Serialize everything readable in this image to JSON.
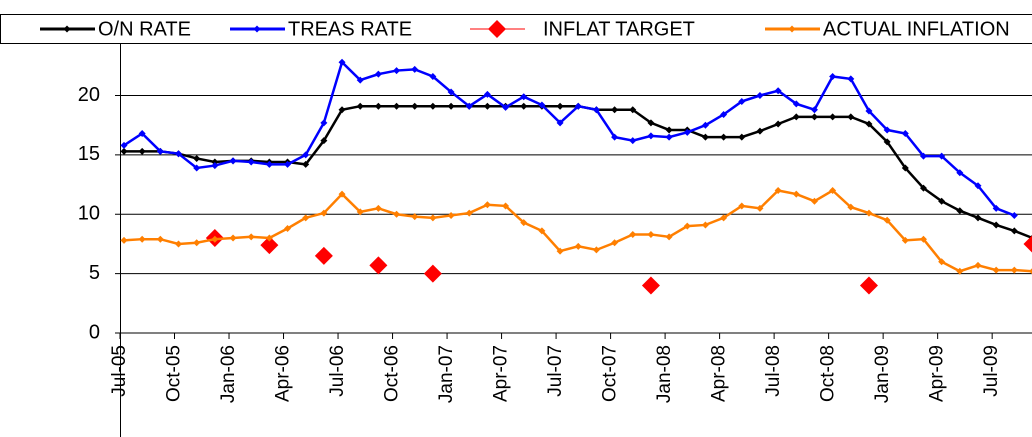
{
  "chart_data": {
    "type": "line",
    "categories": [
      "Jul-05",
      null,
      null,
      "Oct-05",
      null,
      null,
      "Jan-06",
      null,
      null,
      "Apr-06",
      null,
      null,
      "Jul-06",
      null,
      null,
      "Oct-06",
      null,
      null,
      "Jan-07",
      null,
      null,
      "Apr-07",
      null,
      null,
      "Jul-07",
      null,
      null,
      "Oct-07",
      null,
      null,
      "Jan-08",
      null,
      null,
      "Apr-08",
      null,
      null,
      "Jul-08",
      null,
      null,
      "Oct-08",
      null,
      null,
      "Jan-09",
      null,
      null,
      "Apr-09",
      null,
      null,
      "Jul-09",
      null,
      null
    ],
    "series": [
      {
        "name": "O/N RATE",
        "color": "#000000",
        "marker": "dot",
        "line": true,
        "values": [
          15.3,
          15.3,
          15.3,
          15.1,
          14.7,
          14.4,
          14.5,
          14.5,
          14.4,
          14.4,
          14.2,
          16.2,
          18.8,
          19.1,
          19.1,
          19.1,
          19.1,
          19.1,
          19.1,
          19.1,
          19.1,
          19.1,
          19.1,
          19.1,
          19.1,
          19.1,
          18.8,
          18.8,
          18.8,
          17.7,
          17.1,
          17.1,
          16.5,
          16.5,
          16.5,
          17.0,
          17.6,
          18.2,
          18.2,
          18.2,
          18.2,
          17.6,
          16.1,
          13.9,
          12.2,
          11.1,
          10.3,
          9.7,
          9.1,
          8.6,
          8.0
        ]
      },
      {
        "name": "TREAS RATE",
        "color": "#0000ff",
        "marker": "dot",
        "line": true,
        "values": [
          15.8,
          16.8,
          15.3,
          15.1,
          13.9,
          14.1,
          14.5,
          14.4,
          14.2,
          14.2,
          15.0,
          17.7,
          22.8,
          21.3,
          21.8,
          22.1,
          22.2,
          21.6,
          20.3,
          19.1,
          20.1,
          19.0,
          19.9,
          19.2,
          17.7,
          19.1,
          18.8,
          16.5,
          16.2,
          16.6,
          16.5,
          16.9,
          17.5,
          18.4,
          19.5,
          20.0,
          20.4,
          19.3,
          18.8,
          21.6,
          21.4,
          18.7,
          17.1,
          16.8,
          14.9,
          14.9,
          13.5,
          12.4,
          10.5,
          9.9,
          null
        ]
      },
      {
        "name": "INFLAT TARGET",
        "color": "#ff0000",
        "marker": "diamond",
        "line": false,
        "values": [
          null,
          null,
          null,
          null,
          null,
          8.0,
          null,
          null,
          7.4,
          null,
          null,
          6.5,
          null,
          null,
          5.7,
          null,
          null,
          5.0,
          null,
          null,
          null,
          null,
          null,
          null,
          null,
          null,
          null,
          null,
          null,
          4.0,
          null,
          null,
          null,
          null,
          null,
          null,
          null,
          null,
          null,
          null,
          null,
          4.0,
          null,
          null,
          null,
          null,
          null,
          null,
          null,
          null,
          7.5
        ]
      },
      {
        "name": "ACTUAL INFLATION",
        "color": "#ff7f00",
        "marker": "dot",
        "line": true,
        "values": [
          7.8,
          7.9,
          7.9,
          7.5,
          7.6,
          7.9,
          8.0,
          8.1,
          8.0,
          8.8,
          9.7,
          10.1,
          11.7,
          10.2,
          10.5,
          10.0,
          9.8,
          9.7,
          9.9,
          10.1,
          10.8,
          10.7,
          9.3,
          8.6,
          6.9,
          7.3,
          7.0,
          7.6,
          8.3,
          8.3,
          8.1,
          9.0,
          9.1,
          9.7,
          10.7,
          10.5,
          12.0,
          11.7,
          11.1,
          12.0,
          10.6,
          10.1,
          9.5,
          7.8,
          7.9,
          6.0,
          5.2,
          5.7,
          5.3,
          5.3,
          5.2
        ]
      }
    ],
    "ylim": [
      0,
      24
    ],
    "yticks": [
      0,
      5,
      10,
      15,
      20
    ],
    "grid": true,
    "legend": "top"
  }
}
